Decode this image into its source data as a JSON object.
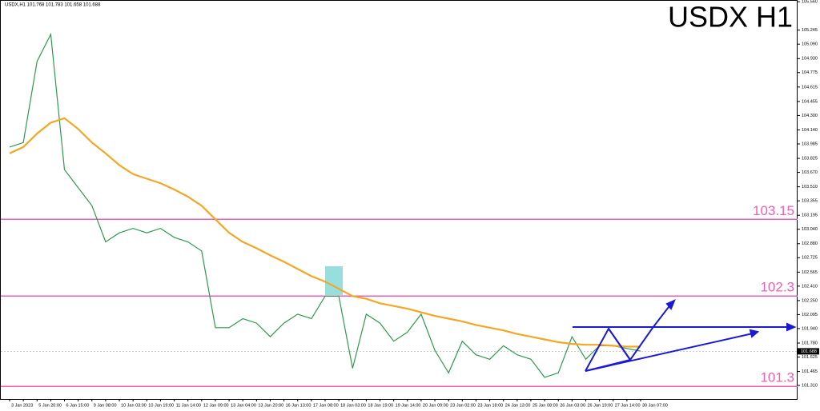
{
  "chart_data": {
    "type": "line",
    "title": "USDX H1",
    "header": "USDX,H1  101.768 101.783 101.658 101.688",
    "categories": [
      "3 Jan 2023",
      null,
      "5 Jan 20:00",
      null,
      "6 Jan 15:00",
      null,
      "9 Jan 08:00",
      null,
      "10 Jan 03:00",
      null,
      "10 Jan 19:00",
      null,
      "11 Jan 14:00",
      null,
      "12 Jan 09:00",
      null,
      "13 Jan 04:00",
      null,
      "13 Jan 20:00",
      null,
      "16 Jan 13:00",
      null,
      "17 Jan 08:00",
      null,
      "18 Jan 03:00",
      null,
      "18 Jan 19:00",
      null,
      "19 Jan 14:00",
      null,
      "20 Jan 09:00",
      null,
      "23 Jan 02:00",
      null,
      "23 Jan 18:00",
      null,
      "24 Jan 13:00",
      null,
      "25 Jan 08:00",
      null,
      "26 Jan 03:00",
      null,
      "26 Jan 19:00",
      null,
      "27 Jan 14:00",
      null,
      "30 Jan 07:00"
    ],
    "series": [
      {
        "color": "#2e9a4e",
        "values": [
          103.95,
          104.0,
          104.9,
          105.2,
          103.7,
          103.5,
          103.3,
          102.9,
          103.0,
          103.05,
          103.0,
          103.05,
          102.95,
          102.9,
          102.8,
          101.95,
          101.95,
          102.05,
          102.0,
          101.85,
          102.0,
          102.1,
          102.05,
          102.3,
          102.3,
          101.5,
          102.1,
          102.0,
          101.8,
          101.9,
          102.1,
          101.7,
          101.45,
          101.8,
          101.65,
          101.6,
          101.75,
          101.65,
          101.6,
          101.4,
          101.45,
          101.85,
          101.6,
          101.75,
          101.75,
          101.72,
          101.69
        ]
      },
      {
        "color": "#f5a623",
        "values": [
          103.88,
          103.95,
          104.1,
          104.22,
          104.27,
          104.15,
          104.0,
          103.88,
          103.75,
          103.65,
          103.6,
          103.55,
          103.48,
          103.4,
          103.3,
          103.15,
          103.0,
          102.9,
          102.83,
          102.75,
          102.68,
          102.6,
          102.52,
          102.46,
          102.38,
          102.3,
          102.27,
          102.22,
          102.19,
          102.16,
          102.12,
          102.08,
          102.05,
          102.02,
          101.98,
          101.95,
          101.92,
          101.88,
          101.85,
          101.82,
          101.79,
          101.77,
          101.76,
          101.76,
          101.75,
          101.74,
          101.74
        ]
      }
    ],
    "levels": [
      103.15,
      102.3,
      101.3
    ],
    "level_color": "#ee5fb4",
    "current_price": 101.688,
    "ylim": [
      101.16,
      105.57
    ],
    "yticks": [
      {
        "value": 105.56,
        "label": "105.560"
      },
      {
        "value": 105.245,
        "label": "105.245"
      },
      {
        "value": 105.09,
        "label": "105.090"
      },
      {
        "value": 104.93,
        "label": "104.930"
      },
      {
        "value": 104.775,
        "label": "104.775"
      },
      {
        "value": 104.615,
        "label": "104.615"
      },
      {
        "value": 104.455,
        "label": "104.455"
      },
      {
        "value": 104.3,
        "label": "104.300"
      },
      {
        "value": 104.14,
        "label": "104.140"
      },
      {
        "value": 103.985,
        "label": "103.985"
      },
      {
        "value": 103.825,
        "label": "103.825"
      },
      {
        "value": 103.67,
        "label": "103.670"
      },
      {
        "value": 103.51,
        "label": "103.510"
      },
      {
        "value": 103.355,
        "label": "103.355"
      },
      {
        "value": 103.195,
        "label": "103.195"
      },
      {
        "value": 103.04,
        "label": "103.040"
      },
      {
        "value": 102.88,
        "label": "102.880"
      },
      {
        "value": 102.725,
        "label": "102.725"
      },
      {
        "value": 102.565,
        "label": "102.565"
      },
      {
        "value": 102.41,
        "label": "102.410"
      },
      {
        "value": 102.25,
        "label": "102.250"
      },
      {
        "value": 102.095,
        "label": "102.095"
      },
      {
        "value": 101.94,
        "label": "101.940"
      },
      {
        "value": 101.78,
        "label": "101.780"
      },
      {
        "value": 101.625,
        "label": "101.625"
      },
      {
        "value": 101.465,
        "label": "101.465"
      },
      {
        "value": 101.31,
        "label": "101.310"
      }
    ]
  }
}
